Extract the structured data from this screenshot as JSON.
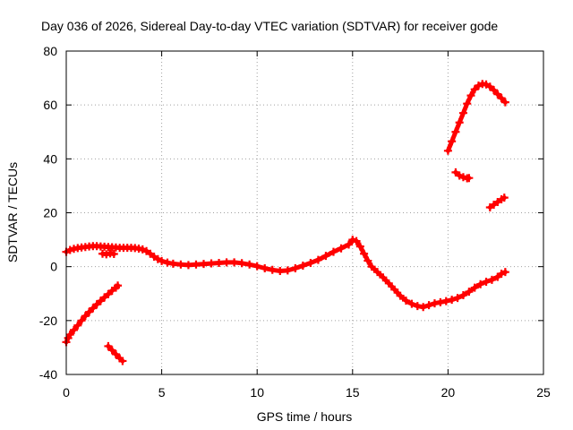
{
  "chart_data": {
    "type": "scatter",
    "title": "Day 036 of 2026, Sidereal Day-to-day VTEC variation (SDTVAR) for receiver gode",
    "xlabel": "GPS time / hours",
    "ylabel": "SDTVAR / TECUs",
    "xlim": [
      0,
      25
    ],
    "ylim": [
      -40,
      80
    ],
    "xticks": [
      0,
      5,
      10,
      15,
      20,
      25
    ],
    "yticks": [
      -40,
      -20,
      0,
      20,
      40,
      60,
      80
    ],
    "grid": true,
    "marker": "+",
    "series": [
      {
        "name": "main-arc",
        "color": "#ff0000",
        "points": [
          [
            0.0,
            5.5
          ],
          [
            0.2,
            6.2
          ],
          [
            0.4,
            6.6
          ],
          [
            0.6,
            6.9
          ],
          [
            0.8,
            7.1
          ],
          [
            1.0,
            7.3
          ],
          [
            1.2,
            7.5
          ],
          [
            1.4,
            7.6
          ],
          [
            1.6,
            7.6
          ],
          [
            1.8,
            7.5
          ],
          [
            2.0,
            7.4
          ],
          [
            2.2,
            7.3
          ],
          [
            2.4,
            7.2
          ],
          [
            2.6,
            7.1
          ],
          [
            2.8,
            7.0
          ],
          [
            3.0,
            7.0
          ],
          [
            3.2,
            7.0
          ],
          [
            3.4,
            7.0
          ],
          [
            3.6,
            6.9
          ],
          [
            3.8,
            6.7
          ],
          [
            4.0,
            6.4
          ],
          [
            4.2,
            5.8
          ],
          [
            4.4,
            4.8
          ],
          [
            4.6,
            3.7
          ],
          [
            4.8,
            2.8
          ],
          [
            5.0,
            2.1
          ],
          [
            5.3,
            1.5
          ],
          [
            5.6,
            1.1
          ],
          [
            6.0,
            0.8
          ],
          [
            6.4,
            0.6
          ],
          [
            6.8,
            0.8
          ],
          [
            7.2,
            1.0
          ],
          [
            7.6,
            1.2
          ],
          [
            8.0,
            1.4
          ],
          [
            8.4,
            1.6
          ],
          [
            8.8,
            1.6
          ],
          [
            9.2,
            1.3
          ],
          [
            9.6,
            0.8
          ],
          [
            10.0,
            0.2
          ],
          [
            10.4,
            -0.6
          ],
          [
            10.8,
            -1.2
          ],
          [
            11.2,
            -1.6
          ],
          [
            11.6,
            -1.4
          ],
          [
            12.0,
            -0.6
          ],
          [
            12.4,
            0.4
          ],
          [
            12.8,
            1.4
          ],
          [
            13.2,
            2.5
          ],
          [
            13.6,
            4.0
          ],
          [
            14.0,
            5.5
          ],
          [
            14.4,
            6.8
          ],
          [
            14.8,
            8.2
          ],
          [
            15.0,
            10.0
          ],
          [
            15.2,
            9.5
          ],
          [
            15.4,
            7.5
          ],
          [
            15.6,
            4.8
          ],
          [
            15.8,
            2.2
          ],
          [
            16.0,
            0.0
          ],
          [
            16.3,
            -2.0
          ],
          [
            16.6,
            -4.0
          ],
          [
            16.9,
            -6.2
          ],
          [
            17.2,
            -8.5
          ],
          [
            17.5,
            -10.8
          ],
          [
            17.8,
            -12.6
          ],
          [
            18.1,
            -13.8
          ],
          [
            18.4,
            -14.6
          ],
          [
            18.7,
            -15.0
          ],
          [
            19.0,
            -14.3
          ],
          [
            19.3,
            -13.6
          ],
          [
            19.6,
            -13.2
          ],
          [
            19.9,
            -12.8
          ],
          [
            20.2,
            -12.3
          ],
          [
            20.5,
            -11.6
          ],
          [
            20.8,
            -10.6
          ],
          [
            21.1,
            -9.3
          ],
          [
            21.4,
            -7.8
          ],
          [
            21.7,
            -6.5
          ],
          [
            22.0,
            -5.6
          ],
          [
            22.3,
            -4.9
          ],
          [
            22.6,
            -3.8
          ],
          [
            22.8,
            -2.6
          ],
          [
            23.0,
            -2.0
          ]
        ]
      },
      {
        "name": "rising-arc",
        "color": "#ff0000",
        "points": [
          [
            0.0,
            -28.0
          ],
          [
            0.1,
            -26.5
          ],
          [
            0.2,
            -25.2
          ],
          [
            0.4,
            -23.5
          ],
          [
            0.6,
            -21.8
          ],
          [
            0.8,
            -20.0
          ],
          [
            1.0,
            -18.3
          ],
          [
            1.2,
            -16.8
          ],
          [
            1.4,
            -15.4
          ],
          [
            1.6,
            -14.0
          ],
          [
            1.8,
            -12.7
          ],
          [
            2.0,
            -11.4
          ],
          [
            2.2,
            -10.2
          ],
          [
            2.4,
            -8.9
          ],
          [
            2.6,
            -7.8
          ],
          [
            2.7,
            -7.0
          ]
        ]
      },
      {
        "name": "early-drop",
        "color": "#ff0000",
        "points": [
          [
            2.2,
            -29.5
          ],
          [
            2.4,
            -31.0
          ],
          [
            2.6,
            -32.5
          ],
          [
            2.8,
            -34.0
          ],
          [
            2.95,
            -35.0
          ]
        ]
      },
      {
        "name": "small-cluster",
        "color": "#ff0000",
        "points": [
          [
            1.9,
            4.8
          ],
          [
            2.1,
            4.6
          ],
          [
            2.3,
            4.9
          ],
          [
            2.5,
            4.7
          ]
        ]
      },
      {
        "name": "late-high-arc",
        "color": "#ff0000",
        "points": [
          [
            20.0,
            43.0
          ],
          [
            20.2,
            46.5
          ],
          [
            20.4,
            50.0
          ],
          [
            20.6,
            53.5
          ],
          [
            20.8,
            57.0
          ],
          [
            21.0,
            60.5
          ],
          [
            21.2,
            63.5
          ],
          [
            21.4,
            65.8
          ],
          [
            21.6,
            67.2
          ],
          [
            21.8,
            67.8
          ],
          [
            22.0,
            67.6
          ],
          [
            22.2,
            66.8
          ],
          [
            22.4,
            65.5
          ],
          [
            22.6,
            64.0
          ],
          [
            22.8,
            62.5
          ],
          [
            23.0,
            61.0
          ]
        ]
      },
      {
        "name": "late-mid-cluster",
        "color": "#ff0000",
        "points": [
          [
            20.4,
            35.0
          ],
          [
            20.6,
            33.8
          ],
          [
            20.8,
            33.2
          ],
          [
            21.0,
            32.8
          ],
          [
            21.1,
            32.9
          ]
        ]
      },
      {
        "name": "late-low-cluster",
        "color": "#ff0000",
        "points": [
          [
            22.2,
            22.0
          ],
          [
            22.4,
            23.0
          ],
          [
            22.6,
            24.0
          ],
          [
            22.8,
            25.0
          ],
          [
            22.95,
            25.6
          ]
        ]
      }
    ]
  }
}
